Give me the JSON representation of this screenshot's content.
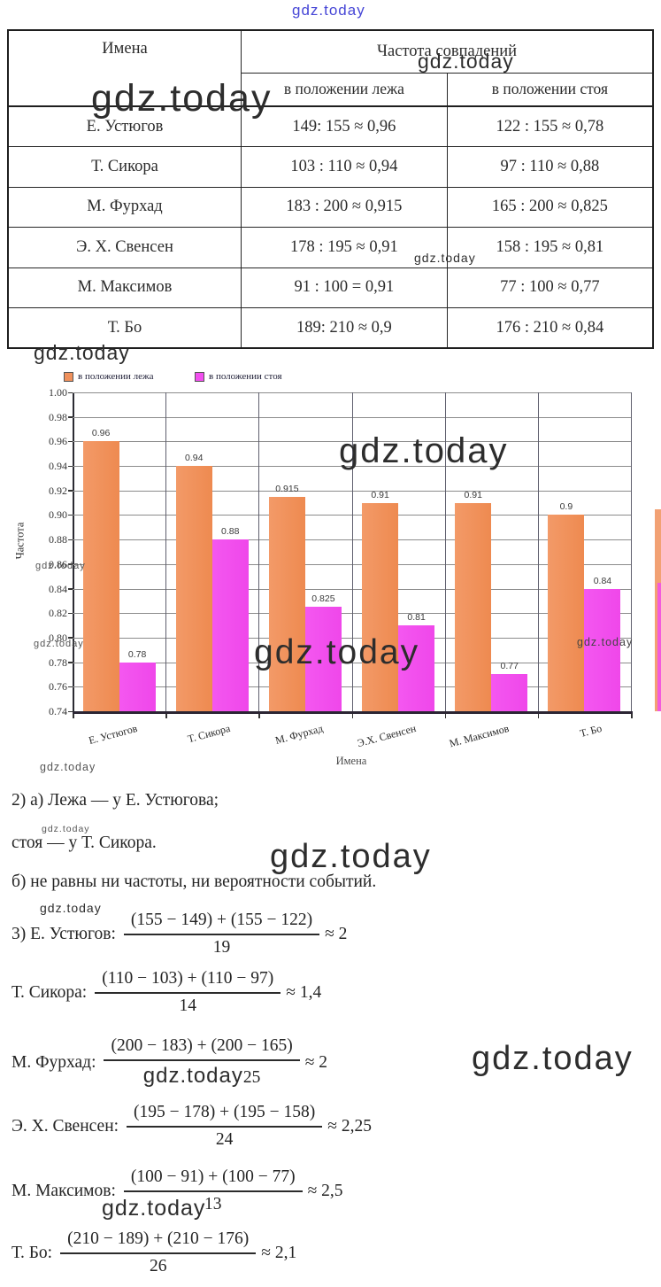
{
  "watermark": {
    "text": "gdz.today"
  },
  "table": {
    "header": {
      "col_names": "Имена",
      "col_group": "Частота совпадений",
      "sub_left": "в положении лежа",
      "sub_right": "в положении стоя"
    },
    "rows": [
      {
        "name": "Е. Устюгов",
        "lezha": "149: 155 ≈ 0,96",
        "stoya": "122 : 155 ≈ 0,78"
      },
      {
        "name": "Т. Сикора",
        "lezha": "103 : 110 ≈ 0,94",
        "stoya": "97 : 110 ≈ 0,88"
      },
      {
        "name": "М. Фурхад",
        "lezha": "183 : 200 ≈ 0,915",
        "stoya": "165 : 200 ≈ 0,825"
      },
      {
        "name": "Э. Х. Свенсен",
        "lezha": "178 : 195 ≈ 0,91",
        "stoya": "158 : 195 ≈ 0,81"
      },
      {
        "name": "М. Максимов",
        "lezha": "91 : 100 = 0,91",
        "stoya": "77 : 100 ≈ 0,77"
      },
      {
        "name": "Т. Бо",
        "lezha": "189: 210 ≈ 0,9",
        "stoya": "176 : 210 ≈ 0,84"
      }
    ]
  },
  "chart_data": {
    "type": "bar",
    "title": "",
    "xlabel": "Имена",
    "ylabel": "Частота",
    "ylim": [
      0.74,
      1.0
    ],
    "ytick_step": 0.02,
    "yticks": [
      "1.00",
      "0.98",
      "0.96",
      "0.94",
      "0.92",
      "0.90",
      "0.88",
      "0.86",
      "0.84",
      "0.82",
      "0.80",
      "0.78",
      "0.76",
      "0.74"
    ],
    "categories": [
      "Е. Устюгов",
      "Т. Сикора",
      "М. Фурхад",
      "Э.Х. Свенсен",
      "М. Максимов",
      "Т. Бо"
    ],
    "series": [
      {
        "name": "в положении лежа",
        "color": "#f0915c",
        "values": [
          0.96,
          0.94,
          0.915,
          0.91,
          0.91,
          0.9
        ],
        "labels": [
          "0.96",
          "0.94",
          "0.915",
          "0.91",
          "0.91",
          "0.9"
        ]
      },
      {
        "name": "в положении стоя",
        "color": "#f24fef",
        "values": [
          0.78,
          0.88,
          0.825,
          0.81,
          0.77,
          0.84
        ],
        "labels": [
          "0.78",
          "0.88",
          "0.825",
          "0.81",
          "0.77",
          "0.84"
        ]
      }
    ],
    "legend_position": "top-left",
    "grid": true
  },
  "solutions": {
    "line_2a": "2) а) Лежа — у Е. Устюгова;",
    "line_2a2": "стоя — у Т. Сикора.",
    "line_2b": "б) не равны ни частоты, ни вероятности событий.",
    "formulas": [
      {
        "label": "3) Е. Устюгов:",
        "numerator": "(155 − 149) + (155 − 122)",
        "denominator": "19",
        "result": "≈ 2",
        "den_watermark": false
      },
      {
        "label": "Т. Сикора:",
        "numerator": "(110 − 103) + (110 − 97)",
        "denominator": "14",
        "result": "≈ 1,4",
        "den_watermark": false
      },
      {
        "label": "М. Фурхад:",
        "numerator": "(200 − 183) + (200 − 165)",
        "denominator": "25",
        "result": "≈ 2",
        "den_watermark": true
      },
      {
        "label": "Э. Х. Свенсен:",
        "numerator": "(195 − 178) + (195 − 158)",
        "denominator": "24",
        "result": "≈ 2,25",
        "den_watermark": false
      },
      {
        "label": "М. Максимов:",
        "numerator": "(100 − 91) + (100 − 77)",
        "denominator": "13",
        "result": "≈ 2,5",
        "den_watermark": false
      },
      {
        "label": "Т. Бо:",
        "numerator": "(210 − 189) + (210 − 176)",
        "denominator": "26",
        "result": "≈ 2,1",
        "den_watermark": false
      }
    ]
  }
}
